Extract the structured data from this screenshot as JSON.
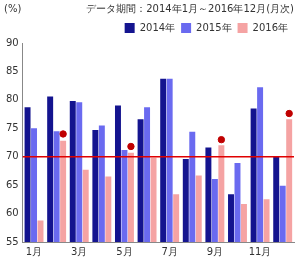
{
  "chart_data": {
    "type": "bar",
    "title": "データ期間：2014年1月～2016年12月(月次)",
    "ylabel": "(%)",
    "categories": [
      "1月",
      null,
      "3月",
      null,
      "5月",
      null,
      "7月",
      null,
      "9月",
      null,
      "11月",
      null
    ],
    "ylim": [
      55,
      90
    ],
    "yticks": [
      55,
      60,
      65,
      70,
      75,
      80,
      85,
      90
    ],
    "grid": false,
    "legend": "top",
    "series": [
      {
        "name": "2014年",
        "color": "#14148f",
        "values": [
          78.7,
          80.6,
          79.8,
          74.7,
          79.0,
          76.6,
          83.7,
          69.6,
          71.6,
          63.4,
          78.5,
          70.0
        ]
      },
      {
        "name": "2015年",
        "color": "#6a6af0",
        "values": [
          75.0,
          74.5,
          79.6,
          75.5,
          71.2,
          78.7,
          83.7,
          74.4,
          66.1,
          68.9,
          82.2,
          64.9
        ]
      },
      {
        "name": "2016年",
        "color": "#f5a3a3",
        "values": [
          58.8,
          72.8,
          67.7,
          66.5,
          70.7,
          69.8,
          63.4,
          66.7,
          72.0,
          61.7,
          62.5,
          76.6
        ]
      },
      {
        "type": "scatter",
        "color": "#c00000",
        "marker": "circle",
        "values": [
          null,
          74.0,
          null,
          null,
          71.8,
          null,
          null,
          null,
          73.0,
          null,
          null,
          77.6
        ]
      },
      {
        "type": "line",
        "color": "#e00000",
        "line_style": "solid",
        "values": [
          70,
          70,
          70,
          70,
          70,
          70,
          70,
          70,
          70,
          70,
          70,
          70
        ]
      }
    ]
  }
}
